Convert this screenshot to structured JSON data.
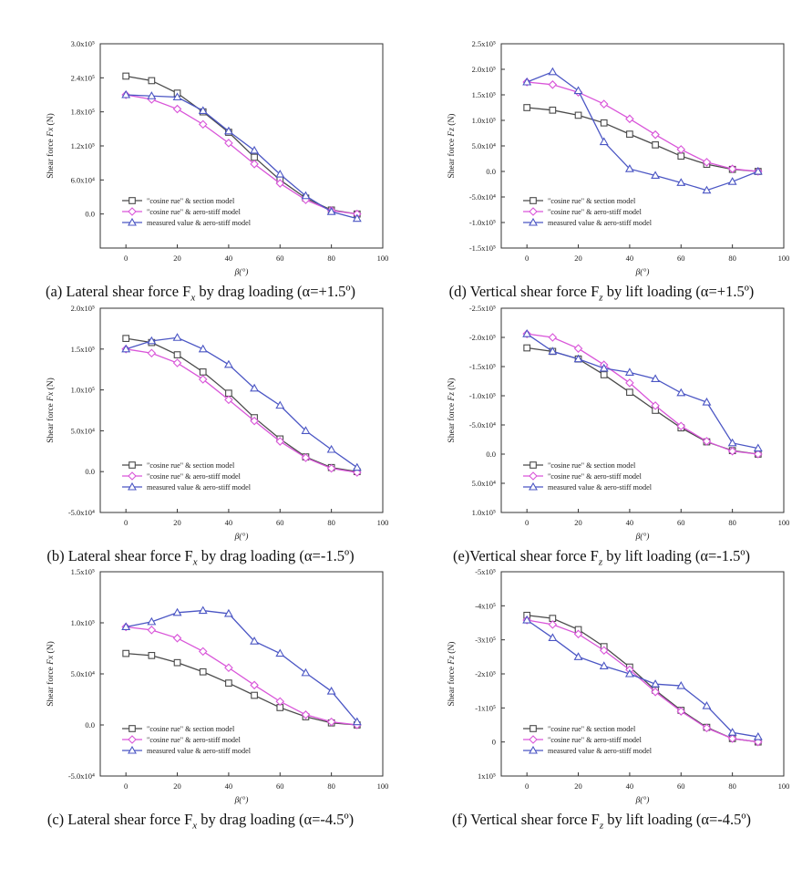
{
  "chart_data": [
    {
      "id": "a",
      "type": "line",
      "caption": {
        "prefix": "(a) Lateral shear force F",
        "sub": "x",
        "suffix": " by drag loading (α=+1.5º)"
      },
      "ylabel_plain": "Shear force ",
      "ylabel_sym": "Fx",
      "ylabel_unit": " (N)",
      "xlabel": "β(°)",
      "ylim": [
        -0.6,
        3.0
      ],
      "y_ticks": [
        0,
        0.6,
        1.2,
        1.8,
        2.4,
        3.0
      ],
      "y_tick_labels": [
        "0.0",
        "6.0x10⁴",
        "1.2x10⁵",
        "1.8x10⁵",
        "2.4x10⁵",
        "3.0x10⁵"
      ],
      "legend": [
        "\"cosine rue\" & section model",
        "\"cosine rue\" & aero-stiff model",
        "measured value & aero-stiff model"
      ],
      "series": [
        {
          "name": "\"cosine rue\" & section model",
          "values": [
            2.43,
            2.35,
            2.13,
            1.8,
            1.44,
            1.0,
            0.6,
            0.28,
            0.07,
            0.0
          ]
        },
        {
          "name": "\"cosine rue\" & aero-stiff model",
          "values": [
            2.1,
            2.02,
            1.85,
            1.58,
            1.25,
            0.88,
            0.54,
            0.25,
            0.06,
            0.0
          ]
        },
        {
          "name": "measured value & aero-stiff model",
          "values": [
            2.1,
            2.08,
            2.06,
            1.82,
            1.46,
            1.12,
            0.7,
            0.32,
            0.04,
            -0.08
          ]
        }
      ]
    },
    {
      "id": "d",
      "type": "line",
      "caption": {
        "prefix": "(d) Vertical shear force F",
        "sub": "z",
        "suffix": " by lift loading (α=+1.5º)"
      },
      "ylabel_plain": "Shear force ",
      "ylabel_sym": "Fz",
      "ylabel_unit": " (N)",
      "xlabel": "β(°)",
      "ylim": [
        -1.5,
        2.5
      ],
      "y_ticks": [
        -1.5,
        -1.0,
        -0.5,
        0.0,
        0.5,
        1.0,
        1.5,
        2.0,
        2.5
      ],
      "y_tick_labels": [
        "-1.5x10⁵",
        "-1.0x10⁵",
        "-5.0x10⁴",
        "0.0",
        "5.0x10⁴",
        "1.0x10⁵",
        "1.5x10⁵",
        "2.0x10⁵",
        "2.5x10⁵"
      ],
      "legend": [
        "\"cosine rue\" & section model",
        "\"cosine rue\" & aero-stiff model",
        "measured value & aero-stiff model"
      ],
      "series": [
        {
          "name": "\"cosine rue\" & section model",
          "values": [
            1.25,
            1.2,
            1.1,
            0.95,
            0.73,
            0.52,
            0.3,
            0.14,
            0.04,
            0.0
          ]
        },
        {
          "name": "\"cosine rue\" & aero-stiff model",
          "values": [
            1.75,
            1.7,
            1.55,
            1.32,
            1.03,
            0.72,
            0.43,
            0.18,
            0.05,
            0.0
          ]
        },
        {
          "name": "measured value & aero-stiff model",
          "values": [
            1.75,
            1.95,
            1.58,
            0.58,
            0.05,
            -0.08,
            -0.22,
            -0.37,
            -0.2,
            0.0
          ]
        }
      ]
    },
    {
      "id": "b",
      "type": "line",
      "caption": {
        "prefix": "(b) Lateral shear force F",
        "sub": "x",
        "suffix": " by drag loading (α=-1.5º)"
      },
      "ylabel_plain": "Shear force ",
      "ylabel_sym": "Fx",
      "ylabel_unit": " (N)",
      "xlabel": "β(°)",
      "ylim": [
        -0.5,
        2.0
      ],
      "y_ticks": [
        -0.5,
        0.0,
        0.5,
        1.0,
        1.5,
        2.0
      ],
      "y_tick_labels": [
        "-5.0x10⁴",
        "0.0",
        "5.0x10⁴",
        "1.0x10⁵",
        "1.5x10⁵",
        "2.0x10⁵"
      ],
      "legend": [
        "\"cosine rue\" & section model",
        "\"cosine rue\" & aero-stiff model",
        "measured value & aero-stiff model"
      ],
      "series": [
        {
          "name": "\"cosine rue\" & section model",
          "values": [
            1.63,
            1.58,
            1.43,
            1.22,
            0.96,
            0.66,
            0.4,
            0.18,
            0.05,
            0.0
          ]
        },
        {
          "name": "\"cosine rue\" & aero-stiff model",
          "values": [
            1.5,
            1.45,
            1.33,
            1.13,
            0.88,
            0.62,
            0.37,
            0.17,
            0.04,
            -0.01
          ]
        },
        {
          "name": "measured value & aero-stiff model",
          "values": [
            1.5,
            1.6,
            1.64,
            1.5,
            1.31,
            1.02,
            0.81,
            0.5,
            0.27,
            0.05
          ]
        }
      ]
    },
    {
      "id": "e",
      "type": "line",
      "caption": {
        "prefix": "(e)Vertical shear force F",
        "sub": "z",
        "suffix": " by lift loading (α=-1.5º)"
      },
      "ylabel_plain": "Shear force ",
      "ylabel_sym": "Fz",
      "ylabel_unit": " (N)",
      "xlabel": "β(°)",
      "ylim": [
        -2.5,
        1.0
      ],
      "y_reversed": true,
      "y_ticks": [
        -2.5,
        -2.0,
        -1.5,
        -1.0,
        -0.5,
        0.0,
        0.5,
        1.0
      ],
      "y_tick_labels": [
        "-2.5x10⁵",
        "-2.0x10⁵",
        "-1.5x10⁵",
        "-1.0x10⁵",
        "-5.0x10⁴",
        "0.0",
        "5.0x10⁴",
        "1.0x10⁵"
      ],
      "legend": [
        "\"cosine rue\" & section model",
        "\"cosine rue\" & aero-stiff model",
        "measured value & aero-stiff model"
      ],
      "series": [
        {
          "name": "\"cosine rue\" & section model",
          "values": [
            -1.82,
            -1.76,
            -1.63,
            -1.36,
            -1.06,
            -0.75,
            -0.45,
            -0.21,
            -0.06,
            0.0
          ]
        },
        {
          "name": "\"cosine rue\" & aero-stiff model",
          "values": [
            -2.06,
            -2.0,
            -1.81,
            -1.53,
            -1.22,
            -0.83,
            -0.48,
            -0.22,
            -0.05,
            0.0
          ]
        },
        {
          "name": "measured value & aero-stiff model",
          "values": [
            -2.06,
            -1.76,
            -1.63,
            -1.47,
            -1.4,
            -1.29,
            -1.05,
            -0.89,
            -0.19,
            -0.1
          ]
        }
      ]
    },
    {
      "id": "c",
      "type": "line",
      "caption": {
        "prefix": "(c) Lateral shear force F",
        "sub": "x",
        "suffix": " by drag loading (α=-4.5º)"
      },
      "ylabel_plain": "Shear force ",
      "ylabel_sym": "Fx",
      "ylabel_unit": " (N)",
      "xlabel": "β(°)",
      "ylim": [
        -0.5,
        1.5
      ],
      "y_ticks": [
        -0.5,
        0.0,
        0.5,
        1.0,
        1.5
      ],
      "y_tick_labels": [
        "-5.0x10⁴",
        "0.0",
        "5.0x10⁴",
        "1.0x10⁵",
        "1.5x10⁵"
      ],
      "legend": [
        "\"cosine rue\" & section model",
        "\"cosine rue\" & aero-stiff model",
        "measured value & aero-stiff model"
      ],
      "series": [
        {
          "name": "\"cosine rue\" & section model",
          "values": [
            0.7,
            0.68,
            0.61,
            0.52,
            0.41,
            0.29,
            0.17,
            0.08,
            0.02,
            0.0
          ]
        },
        {
          "name": "\"cosine rue\" & aero-stiff model",
          "values": [
            0.96,
            0.93,
            0.85,
            0.72,
            0.56,
            0.39,
            0.23,
            0.1,
            0.03,
            0.0
          ]
        },
        {
          "name": "measured value & aero-stiff model",
          "values": [
            0.96,
            1.01,
            1.1,
            1.12,
            1.09,
            0.82,
            0.7,
            0.51,
            0.33,
            0.03
          ]
        }
      ]
    },
    {
      "id": "f",
      "type": "line",
      "caption": {
        "prefix": "(f) Vertical shear force F",
        "sub": "z",
        "suffix": " by lift loading (α=-4.5º)"
      },
      "ylabel_plain": "Shear force ",
      "ylabel_sym": "Fz",
      "ylabel_unit": " (N)",
      "xlabel": "β(°)",
      "ylim": [
        -5,
        1
      ],
      "y_reversed": true,
      "y_ticks": [
        -5,
        -4,
        -3,
        -2,
        -1,
        0,
        1
      ],
      "y_tick_labels": [
        "-5x10⁵",
        "-4x10⁵",
        "-3x10⁵",
        "-2x10⁵",
        "-1x10⁵",
        "0",
        "1x10⁵"
      ],
      "legend": [
        "\"cosine rue\" & section model",
        "\"cosine rue\" & aero-stiff model",
        "measured value & aero-stiff model"
      ],
      "series": [
        {
          "name": "\"cosine rue\" & section model",
          "values": [
            -3.72,
            -3.63,
            -3.3,
            -2.8,
            -2.2,
            -1.52,
            -0.93,
            -0.43,
            -0.1,
            0.0
          ]
        },
        {
          "name": "\"cosine rue\" & aero-stiff model",
          "values": [
            -3.58,
            -3.45,
            -3.17,
            -2.69,
            -2.12,
            -1.47,
            -0.9,
            -0.41,
            -0.1,
            0.0
          ]
        },
        {
          "name": "measured value & aero-stiff model",
          "values": [
            -3.58,
            -3.06,
            -2.5,
            -2.23,
            -2.0,
            -1.7,
            -1.65,
            -1.06,
            -0.28,
            -0.15
          ]
        }
      ]
    }
  ],
  "x_values": [
    0,
    10,
    20,
    30,
    40,
    50,
    60,
    70,
    80,
    90
  ],
  "x_ticks": [
    0,
    20,
    40,
    60,
    80,
    100
  ],
  "x_range": [
    -10,
    100
  ],
  "series_colors": [
    "#4a4a4a",
    "#d955d9",
    "#4b56c4"
  ],
  "series_markers": [
    "square",
    "diamond",
    "triangle"
  ]
}
